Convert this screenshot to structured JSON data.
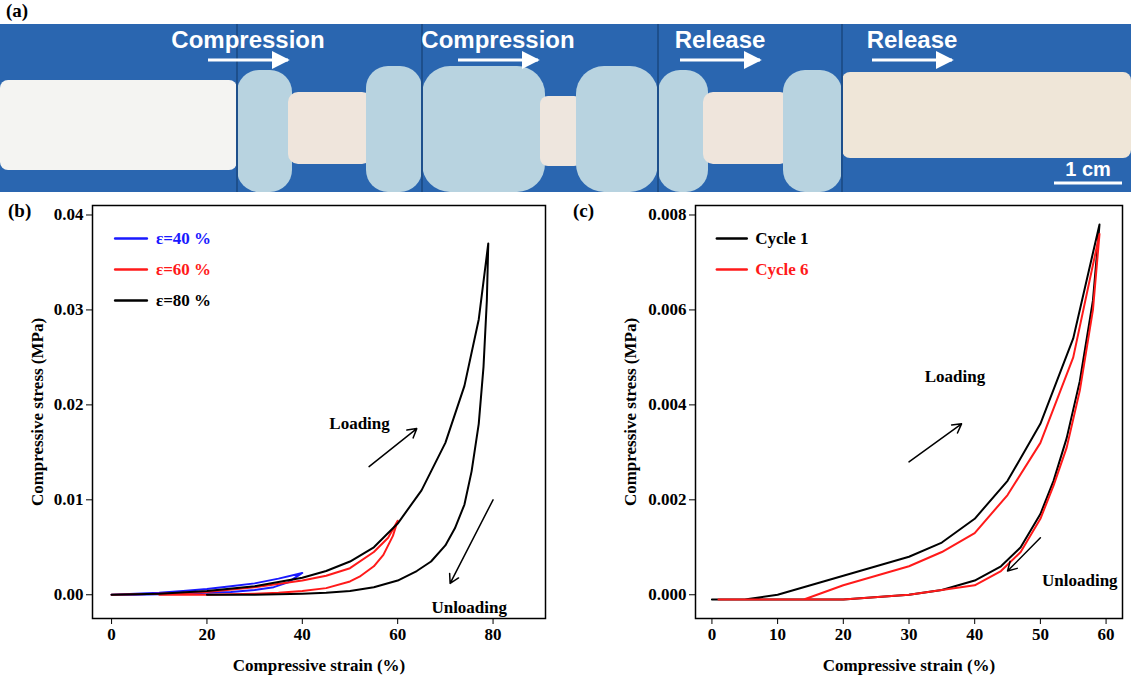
{
  "photo_strip": {
    "panel": "(a)",
    "steps": [
      "Compression",
      "Compression",
      "Release",
      "Release"
    ],
    "scale_bar": "1 cm"
  },
  "chart_data": [
    {
      "type": "line",
      "panel": "(b)",
      "xlabel": "Compressive strain (%)",
      "ylabel": "Compressive stress (MPa)",
      "xlim": [
        -4,
        91
      ],
      "xticks": [
        0,
        20,
        40,
        60,
        80
      ],
      "ylim": [
        -0.0025,
        0.041
      ],
      "yticks": [
        {
          "value": 0,
          "label": "0.00"
        },
        {
          "value": 0.01,
          "label": "0.01"
        },
        {
          "value": 0.02,
          "label": "0.02"
        },
        {
          "value": 0.03,
          "label": "0.03"
        },
        {
          "value": 0.04,
          "label": "0.04"
        }
      ],
      "grid": false,
      "legend": "upper left",
      "series": [
        {
          "name": "ε=40 %",
          "color": "#1a1aff",
          "x": [
            0,
            5,
            10,
            15,
            20,
            25,
            30,
            35,
            40,
            37,
            34,
            30,
            25,
            20,
            15,
            10,
            5,
            0
          ],
          "values": [
            0,
            0.0001,
            0.0002,
            0.0004,
            0.0006,
            0.0009,
            0.0012,
            0.0017,
            0.0023,
            0.0013,
            0.0008,
            0.0005,
            0.0003,
            0.0002,
            0.0001,
            5e-05,
            0,
            0
          ]
        },
        {
          "name": "ε=60 %",
          "color": "#ff1a1a",
          "x": [
            0,
            10,
            20,
            30,
            40,
            45,
            50,
            55,
            58,
            60,
            59,
            57,
            55,
            52,
            50,
            45,
            40,
            35,
            30,
            20,
            10
          ],
          "values": [
            0,
            0.0001,
            0.0003,
            0.0008,
            0.0015,
            0.002,
            0.0028,
            0.0045,
            0.006,
            0.0078,
            0.0062,
            0.0042,
            0.003,
            0.0019,
            0.0014,
            0.0007,
            0.0004,
            0.0002,
            0.0001,
            0,
            0
          ]
        },
        {
          "name": "ε=80 %",
          "color": "#000000",
          "x": [
            0,
            10,
            20,
            30,
            40,
            45,
            50,
            55,
            60,
            65,
            70,
            74,
            77,
            79,
            78.7,
            78,
            77,
            75.5,
            74,
            72,
            70,
            67,
            64,
            60,
            55,
            50,
            45,
            40,
            30,
            20
          ],
          "values": [
            0,
            0.0001,
            0.0004,
            0.0009,
            0.0018,
            0.0025,
            0.0035,
            0.005,
            0.0075,
            0.011,
            0.016,
            0.022,
            0.029,
            0.037,
            0.031,
            0.024,
            0.018,
            0.013,
            0.0095,
            0.007,
            0.0052,
            0.0035,
            0.0025,
            0.0015,
            0.0008,
            0.0004,
            0.0002,
            0.0001,
            0,
            0
          ]
        }
      ],
      "annotations": [
        {
          "text": "Loading",
          "x": 52,
          "y": 0.018,
          "arrow": [
            [
              54,
              0.0135
            ],
            [
              64,
              0.0175
            ]
          ]
        },
        {
          "text": "Unloading",
          "x": 75,
          "y": -0.0013,
          "arrow": [
            [
              80,
              0.01
            ],
            [
              71,
              0.0012
            ]
          ]
        }
      ]
    },
    {
      "type": "line",
      "panel": "(c)",
      "xlabel": "Compressive strain (%)",
      "ylabel": "Compressive stress (MPa)",
      "xlim": [
        -2.5,
        62.5
      ],
      "xticks": [
        0,
        10,
        20,
        30,
        40,
        50,
        60
      ],
      "ylim": [
        -0.0005,
        0.0082
      ],
      "yticks": [
        {
          "value": 0,
          "label": "0.000"
        },
        {
          "value": 0.002,
          "label": "0.002"
        },
        {
          "value": 0.004,
          "label": "0.004"
        },
        {
          "value": 0.006,
          "label": "0.006"
        },
        {
          "value": 0.008,
          "label": "0.008"
        }
      ],
      "grid": false,
      "legend": "upper left",
      "series": [
        {
          "name": "Cycle 1",
          "color": "#000000",
          "x": [
            0,
            5,
            10,
            15,
            20,
            25,
            30,
            35,
            40,
            45,
            50,
            55,
            59,
            58,
            56,
            54,
            52,
            50,
            47,
            44,
            40,
            35,
            30,
            20,
            10,
            1
          ],
          "values": [
            -0.0001,
            -0.0001,
            0,
            0.0002,
            0.0004,
            0.0006,
            0.0008,
            0.0011,
            0.0016,
            0.0024,
            0.0036,
            0.0054,
            0.0078,
            0.0062,
            0.0045,
            0.0033,
            0.0024,
            0.0017,
            0.001,
            0.0006,
            0.0003,
            0.0001,
            0,
            -0.0001,
            -0.0001,
            -0.0001
          ]
        },
        {
          "name": "Cycle 6",
          "color": "#ff1a1a",
          "x": [
            1,
            10,
            14,
            20,
            25,
            30,
            35,
            40,
            45,
            50,
            55,
            59,
            58,
            56,
            54,
            52,
            50,
            47,
            44,
            40,
            35,
            30,
            20,
            10,
            1
          ],
          "values": [
            -0.0001,
            -0.0001,
            -0.0001,
            0.0002,
            0.0004,
            0.0006,
            0.0009,
            0.0013,
            0.0021,
            0.0032,
            0.005,
            0.0076,
            0.006,
            0.0043,
            0.0031,
            0.0023,
            0.0016,
            0.0009,
            0.0005,
            0.0002,
            0.0001,
            0,
            -0.0001,
            -0.0001,
            -0.0001
          ]
        }
      ],
      "annotations": [
        {
          "text": "Loading",
          "x": 37,
          "y": 0.0046,
          "arrow": [
            [
              30,
              0.0028
            ],
            [
              38,
              0.0036
            ]
          ]
        },
        {
          "text": "Unloading",
          "x": 56,
          "y": 0.0003,
          "arrow": [
            [
              50,
              0.0012
            ],
            [
              45,
              0.0005
            ]
          ]
        }
      ]
    }
  ]
}
